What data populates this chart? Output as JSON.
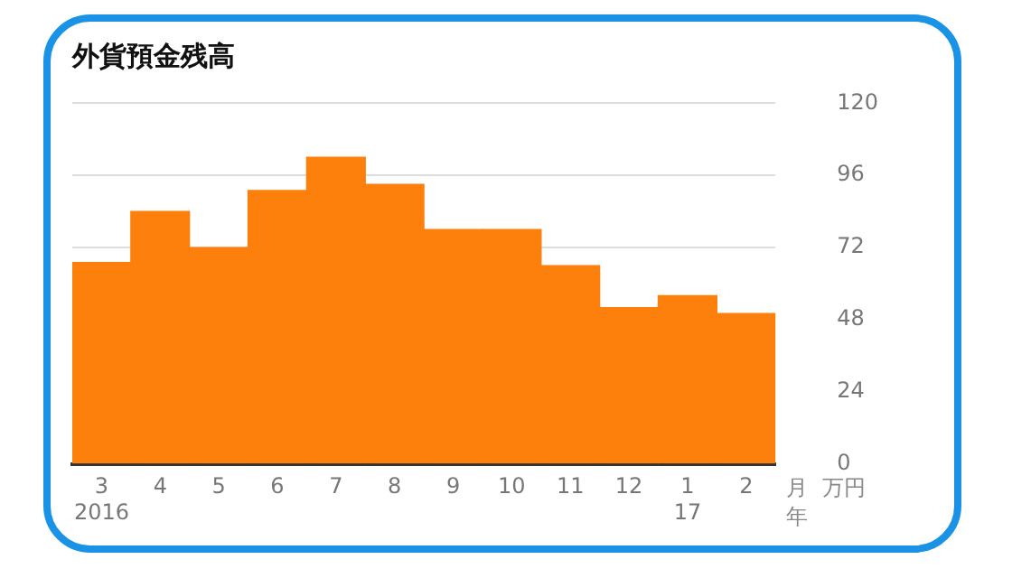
{
  "chart_data": {
    "type": "bar",
    "title": "外貨預金残高",
    "categories": [
      "3\n2016",
      "4",
      "5",
      "6",
      "7",
      "8",
      "9",
      "10",
      "11",
      "12",
      "1\n17",
      "2"
    ],
    "values": [
      67,
      84,
      72,
      91,
      102,
      93,
      78,
      78,
      66,
      52,
      56,
      50
    ],
    "color": "#fd7f0c",
    "xlabel": "月年",
    "ylabel": "万円",
    "ylim": [
      0,
      120
    ],
    "yticks": [
      0,
      24,
      48,
      72,
      96,
      120
    ],
    "grid": "y"
  }
}
